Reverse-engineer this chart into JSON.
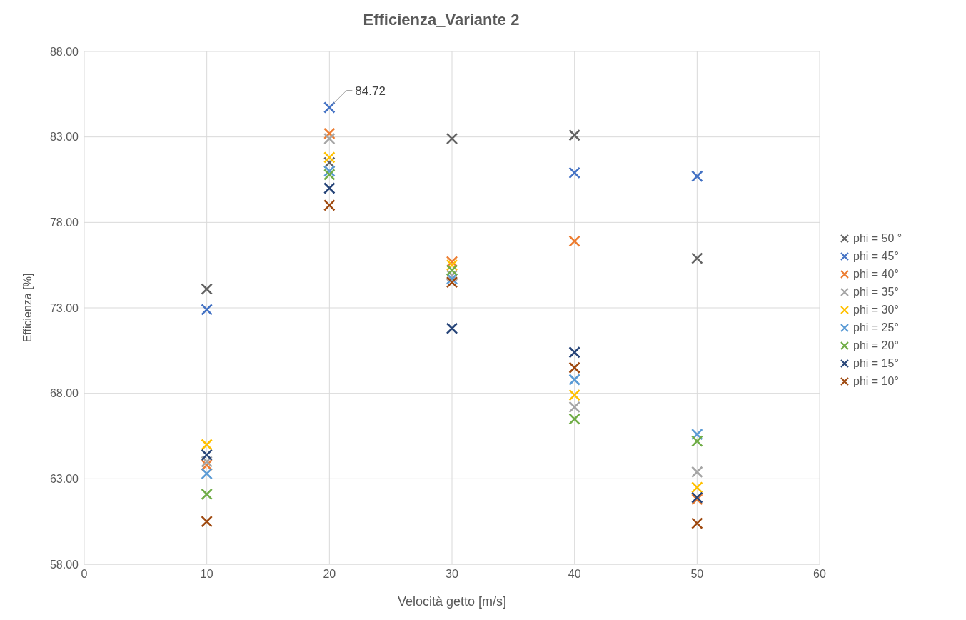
{
  "chart_data": {
    "type": "scatter",
    "title": "Efficienza_Variante 2",
    "xlabel": "Velocità getto [m/s]",
    "ylabel": "Efficienza [%]",
    "x": [
      10,
      20,
      30,
      40,
      50
    ],
    "xlim": [
      0,
      60
    ],
    "xticks": [
      0,
      10,
      20,
      30,
      40,
      50,
      60
    ],
    "ylim": [
      58,
      88
    ],
    "yticks": [
      {
        "value": 58,
        "label": "58.00"
      },
      {
        "value": 63,
        "label": "63.00"
      },
      {
        "value": 68,
        "label": "68.00"
      },
      {
        "value": 73,
        "label": "73.00"
      },
      {
        "value": 78,
        "label": "78.00"
      },
      {
        "value": 83,
        "label": "83.00"
      },
      {
        "value": 88,
        "label": "88.00"
      }
    ],
    "grid": true,
    "legend": "right",
    "marker": "cross",
    "annotations": [
      {
        "text": "84.72",
        "x": 20,
        "y": 84.72
      }
    ],
    "series": [
      {
        "name": "phi = 50 °",
        "color": "#636363",
        "values": [
          74.1,
          81.5,
          82.9,
          83.1,
          75.9
        ]
      },
      {
        "name": "phi = 45°",
        "color": "#4472c4",
        "values": [
          72.9,
          84.72,
          null,
          80.9,
          80.7
        ]
      },
      {
        "name": "phi = 40°",
        "color": "#ed7d31",
        "values": [
          63.8,
          83.2,
          75.7,
          76.9,
          61.8
        ]
      },
      {
        "name": "phi = 35°",
        "color": "#a5a5a5",
        "values": [
          64.0,
          82.9,
          74.9,
          67.2,
          63.4
        ]
      },
      {
        "name": "phi = 30°",
        "color": "#ffc000",
        "values": [
          65.0,
          81.8,
          75.5,
          67.9,
          62.5
        ]
      },
      {
        "name": "phi = 25°",
        "color": "#5b9bd5",
        "values": [
          63.3,
          81.0,
          74.7,
          68.8,
          65.6
        ]
      },
      {
        "name": "phi = 20°",
        "color": "#70ad47",
        "values": [
          62.1,
          80.8,
          75.2,
          66.5,
          65.2
        ]
      },
      {
        "name": "phi = 15°",
        "color": "#264478",
        "values": [
          64.4,
          80.0,
          71.8,
          70.4,
          61.9
        ]
      },
      {
        "name": "phi = 10°",
        "color": "#9e480e",
        "values": [
          60.5,
          79.0,
          74.5,
          69.5,
          60.4
        ]
      }
    ]
  }
}
